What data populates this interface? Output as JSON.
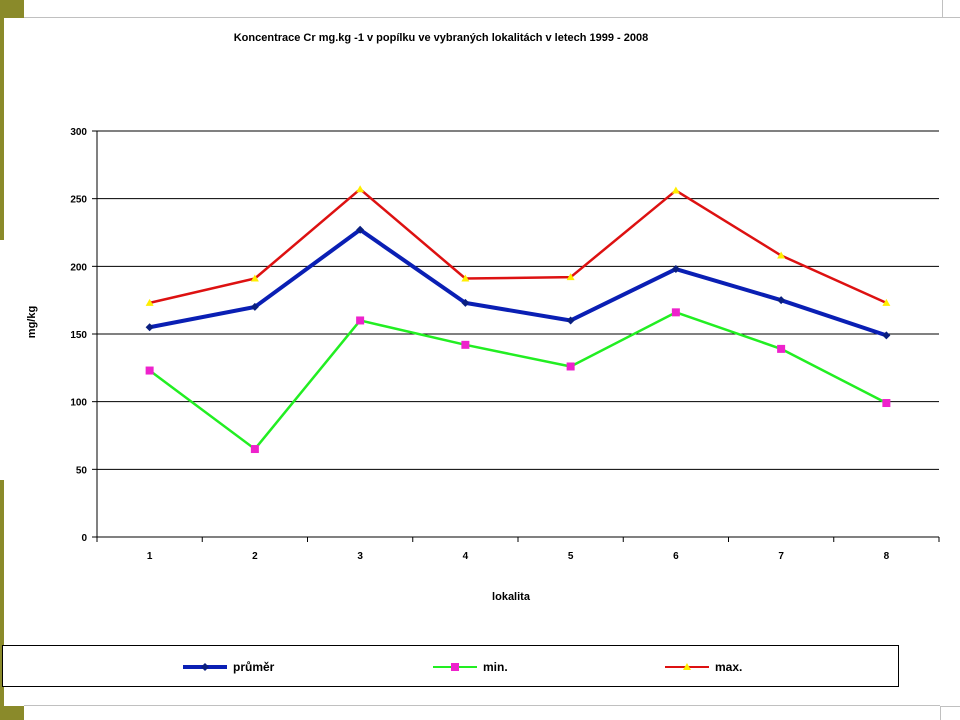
{
  "chart_data": {
    "type": "line",
    "title": "Koncentrace   Cr  mg.kg -1 v popílku ve vybraných lokalitách v letech 1999 - 2008",
    "xlabel": "lokalita",
    "ylabel": "mg/kg",
    "categories": [
      "1",
      "2",
      "3",
      "4",
      "5",
      "6",
      "7",
      "8"
    ],
    "ylim": [
      0,
      300
    ],
    "yticks": [
      "0",
      "50",
      "100",
      "150",
      "200",
      "250",
      "300"
    ],
    "grid": true,
    "legend_position": "bottom",
    "series": [
      {
        "name": "průměr",
        "color": "#0a1fb4",
        "marker": "diamond",
        "marker_color": "#0a1f80",
        "values": [
          155,
          170,
          227,
          173,
          160,
          198,
          175,
          149
        ]
      },
      {
        "name": "min.",
        "color": "#22ee22",
        "marker": "square",
        "marker_color": "#ee22cc",
        "values": [
          123,
          65,
          160,
          142,
          126,
          166,
          139,
          99
        ]
      },
      {
        "name": "max.",
        "color": "#dd1111",
        "marker": "triangle",
        "marker_color": "#ffee00",
        "values": [
          173,
          191,
          257,
          191,
          192,
          256,
          208,
          173
        ]
      }
    ]
  }
}
